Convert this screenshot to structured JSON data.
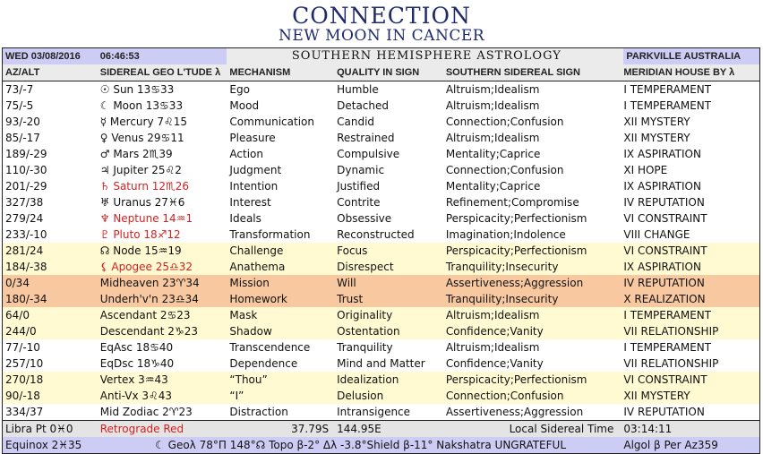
{
  "title": {
    "main": "CONNECTION",
    "sub": "NEW MOON IN CANCER"
  },
  "header": {
    "date": "WED 03/08/2016",
    "time": "06:46:53",
    "center_title": "SOUTHERN HEMISPHERE ASTROLOGY",
    "location": "PARKVILLE AUSTRALIA"
  },
  "columns": [
    "AZ/ALT",
    "SIDEREAL GEO L'TUDE λ",
    "MECHANISM",
    "QUALITY IN SIGN",
    "SOUTHERN SIDEREAL SIGN",
    "MERIDIAN HOUSE BY λ"
  ],
  "colors": {
    "title": "#1f2a6b",
    "retrograde": "#d42020",
    "yellow_row": "#fffad2",
    "orange_row": "#f8c8a0",
    "blue_band": "#ccccf5",
    "gray_band": "#ebebeb"
  },
  "rows": [
    {
      "azalt": "73/-7",
      "body": "☉ Sun 13♋33",
      "mechanism": "Ego",
      "quality": "Humble",
      "sign": "Altruism;Idealism",
      "house": "I TEMPERAMENT",
      "bg": "white",
      "retro": false
    },
    {
      "azalt": "75/-5",
      "body": "☾ Moon 13♋33",
      "mechanism": "Mood",
      "quality": "Detached",
      "sign": "Altruism;Idealism",
      "house": "I TEMPERAMENT",
      "bg": "white",
      "retro": false
    },
    {
      "azalt": "93/-20",
      "body": "☿ Mercury 7♌15",
      "mechanism": "Communication",
      "quality": "Candid",
      "sign": "Connection;Confusion",
      "house": "XII MYSTERY",
      "bg": "white",
      "retro": false
    },
    {
      "azalt": "85/-17",
      "body": "♀ Venus 29♋11",
      "mechanism": "Pleasure",
      "quality": "Restrained",
      "sign": "Altruism;Idealism",
      "house": "XII MYSTERY",
      "bg": "white",
      "retro": false
    },
    {
      "azalt": "189/-29",
      "body": "♂ Mars 2♏39",
      "mechanism": "Action",
      "quality": "Compulsive",
      "sign": "Mentality;Caprice",
      "house": "IX ASPIRATION",
      "bg": "white",
      "retro": false
    },
    {
      "azalt": "110/-30",
      "body": "♃ Jupiter 25♌2",
      "mechanism": "Judgment",
      "quality": "Dynamic",
      "sign": "Connection;Confusion",
      "house": "XI HOPE",
      "bg": "white",
      "retro": false
    },
    {
      "azalt": "201/-29",
      "body": "♄ Saturn 12♏26",
      "mechanism": "Intention",
      "quality": "Justified",
      "sign": "Mentality;Caprice",
      "house": "IX ASPIRATION",
      "bg": "white",
      "retro": true
    },
    {
      "azalt": "327/38",
      "body": "♅ Uranus 27♓6",
      "mechanism": "Interest",
      "quality": "Contrite",
      "sign": "Refinement;Compromise",
      "house": "IV REPUTATION",
      "bg": "white",
      "retro": false
    },
    {
      "azalt": "279/24",
      "body": "♆ Neptune 14♒1",
      "mechanism": "Ideals",
      "quality": "Obsessive",
      "sign": "Perspicacity;Perfectionism",
      "house": "VI CONSTRAINT",
      "bg": "white",
      "retro": true
    },
    {
      "azalt": "233/-10",
      "body": "♇ Pluto 18♐12",
      "mechanism": "Transformation",
      "quality": "Reconstructed",
      "sign": "Imagination;Indolence",
      "house": "VIII CHANGE",
      "bg": "white",
      "retro": true
    },
    {
      "azalt": "281/24",
      "body": "☊ Node 15♒19",
      "mechanism": "Challenge",
      "quality": "Focus",
      "sign": "Perspicacity;Perfectionism",
      "house": "VI CONSTRAINT",
      "bg": "yellow",
      "retro": false
    },
    {
      "azalt": "184/-38",
      "body": "⚸ Apogee 25♎32",
      "mechanism": "Anathema",
      "quality": "Disrespect",
      "sign": "Tranquility;Insecurity",
      "house": "IX ASPIRATION",
      "bg": "yellow",
      "retro": true
    },
    {
      "azalt": "0/34",
      "body": "Midheaven 23♈34",
      "mechanism": "Mission",
      "quality": "Will",
      "sign": "Assertiveness;Aggression",
      "house": "IV REPUTATION",
      "bg": "orange",
      "retro": false
    },
    {
      "azalt": "180/-34",
      "body": "Underh'v'n 23♎34",
      "mechanism": "Homework",
      "quality": "Trust",
      "sign": "Tranquility;Insecurity",
      "house": "X REALIZATION",
      "bg": "orange",
      "retro": false
    },
    {
      "azalt": "64/0",
      "body": "Ascendant 2♋23",
      "mechanism": "Mask",
      "quality": "Originality",
      "sign": "Altruism;Idealism",
      "house": "I TEMPERAMENT",
      "bg": "yellow",
      "retro": false
    },
    {
      "azalt": "244/0",
      "body": "Descendant 2♑23",
      "mechanism": "Shadow",
      "quality": "Ostentation",
      "sign": "Confidence;Vanity",
      "house": "VII RELATIONSHIP",
      "bg": "yellow",
      "retro": false
    },
    {
      "azalt": "77/-10",
      "body": "EqAsc 18♋40",
      "mechanism": "Transcendence",
      "quality": "Tranquility",
      "sign": "Altruism;Idealism",
      "house": "I TEMPERAMENT",
      "bg": "white",
      "retro": false
    },
    {
      "azalt": "257/10",
      "body": "EqDsc 18♑40",
      "mechanism": "Dependence",
      "quality": "Mind and Matter",
      "sign": "Confidence;Vanity",
      "house": "VII RELATIONSHIP",
      "bg": "white",
      "retro": false
    },
    {
      "azalt": "270/18",
      "body": "Vertex 3♒43",
      "mechanism": "“Thou”",
      "quality": "Idealization",
      "sign": "Perspicacity;Perfectionism",
      "house": "VI CONSTRAINT",
      "bg": "yellow",
      "retro": false
    },
    {
      "azalt": "90/-18",
      "body": "Anti-Vx 3♌43",
      "mechanism": "“I”",
      "quality": "Delusion",
      "sign": "Connection;Confusion",
      "house": "XII MYSTERY",
      "bg": "yellow",
      "retro": false
    },
    {
      "azalt": "334/37",
      "body": "Mid Zodiac 2♈23",
      "mechanism": "Distraction",
      "quality": "Intransigence",
      "sign": "Assertiveness;Aggression",
      "house": "IV REPUTATION",
      "bg": "white",
      "retro": false
    }
  ],
  "footer": {
    "libra_pt": "Libra Pt 0♓0",
    "retrograde_note": "Retrograde Red",
    "latitude": "37.79S",
    "longitude": "144.95E",
    "lst_label": "Local Sidereal Time",
    "lst_value": "03:14:11",
    "equinox": "Equinox 2♓35",
    "moon_info": "☾ Geoλ 78°Π 148°☊ Topo β-2° Δλ -3.8°Shield β-11° Nakshatra UNGRATEFUL",
    "fixed_star": "Algol β Per Az359"
  }
}
